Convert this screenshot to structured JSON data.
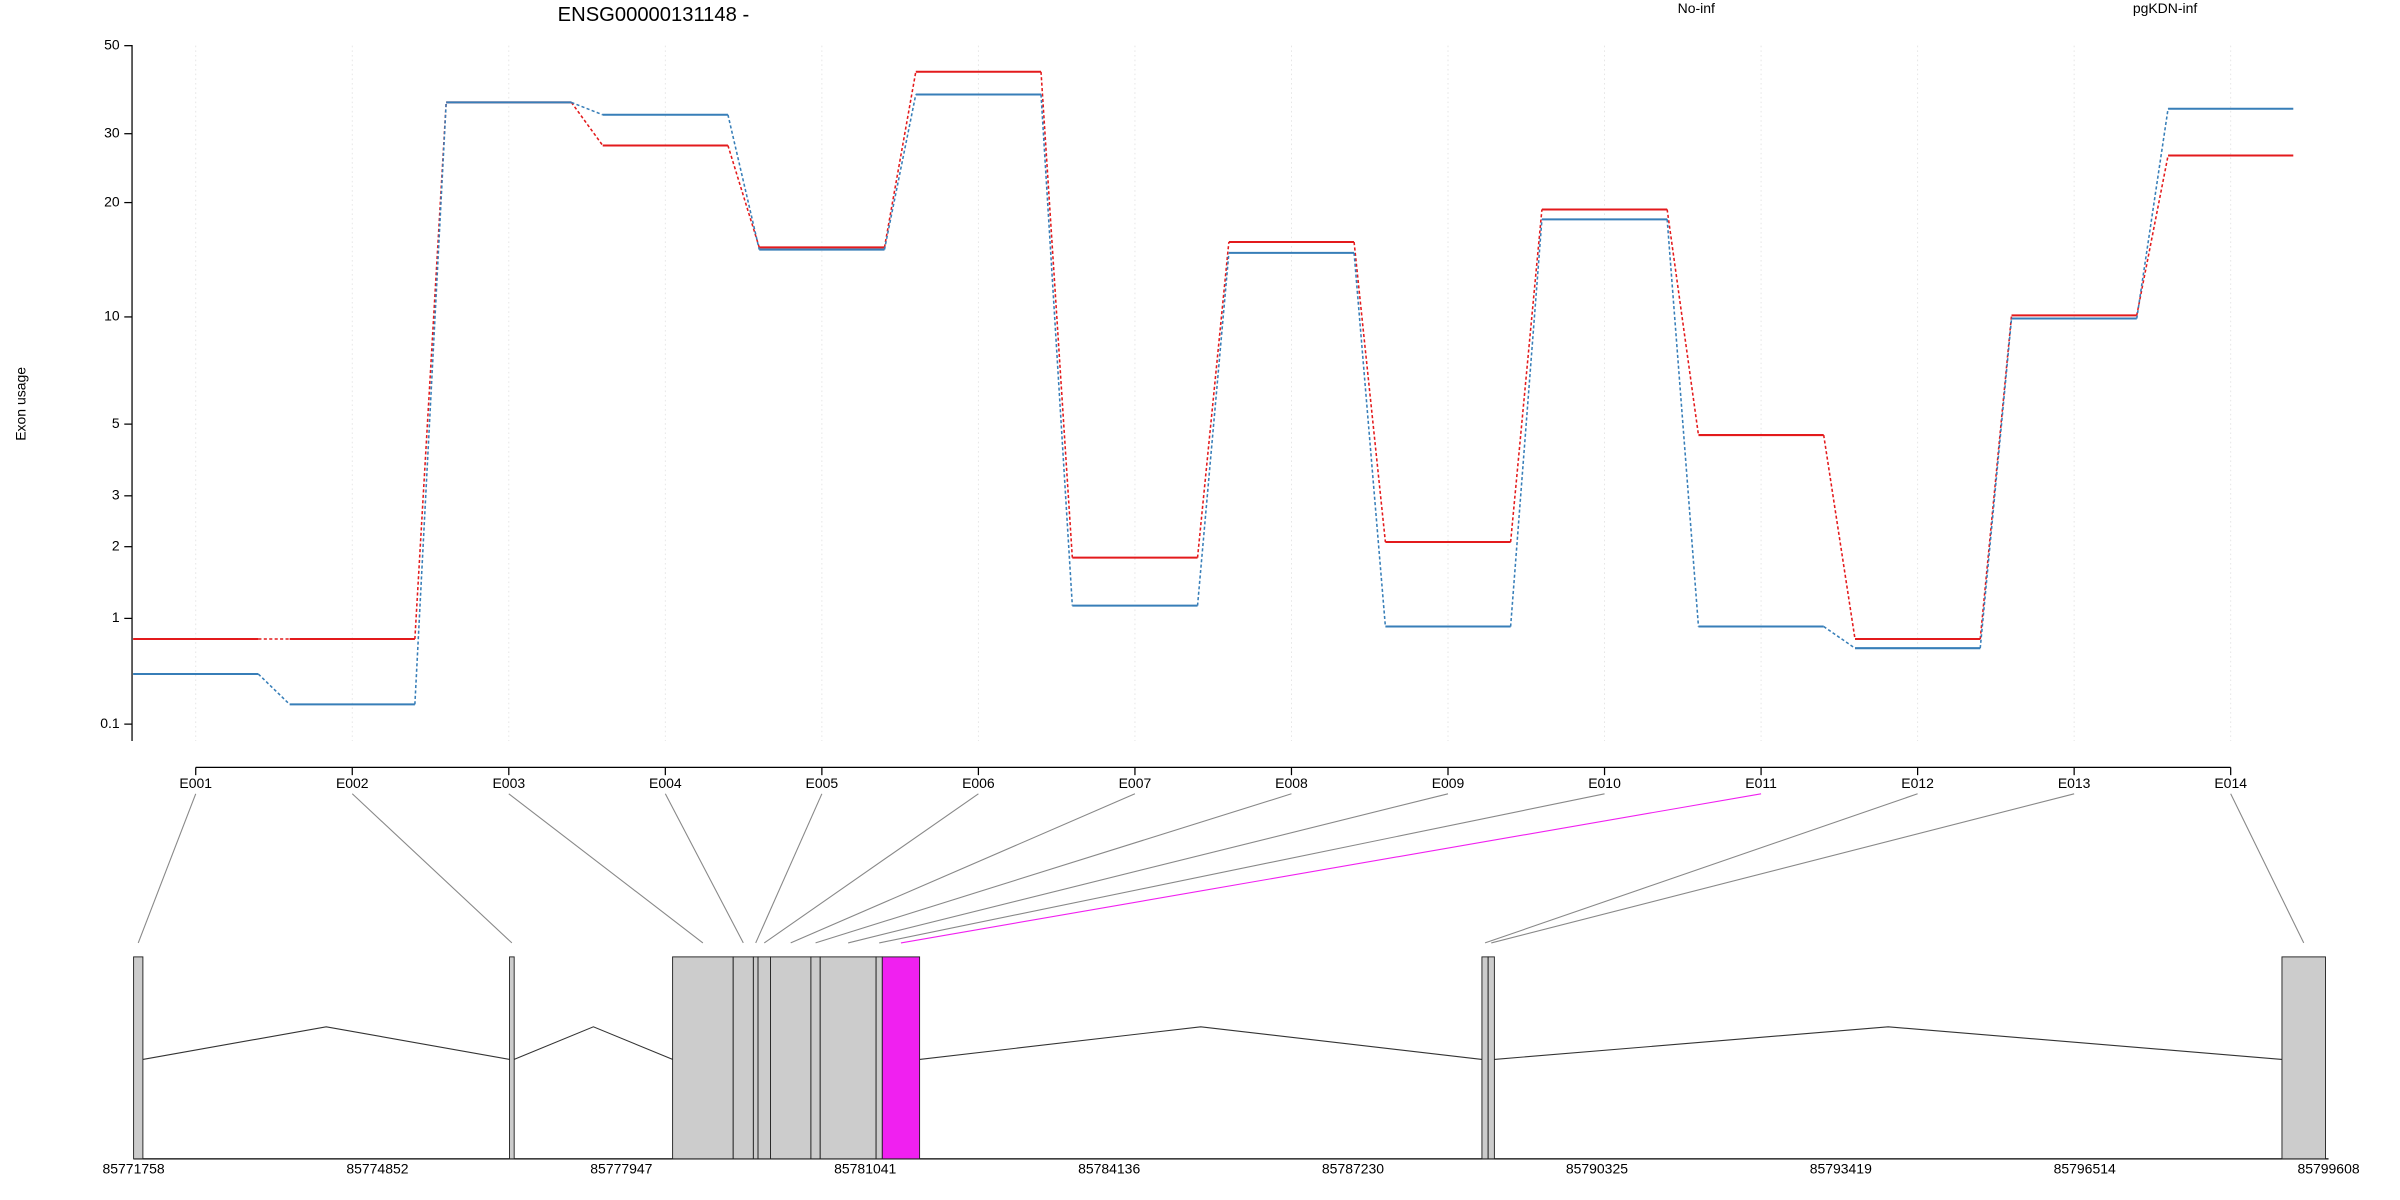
{
  "chart_data": {
    "type": "line",
    "title": "ENSG00000131148 -",
    "y_label": "Exon usage",
    "yscale": "log1p",
    "ylim": [
      0,
      50
    ],
    "yticks": [
      0.1,
      1,
      2,
      3,
      5,
      10,
      20,
      30,
      50
    ],
    "grid": true,
    "legend": "top",
    "categories": [
      "E001",
      "E002",
      "E003",
      "E004",
      "E005",
      "E006",
      "E007",
      "E008",
      "E009",
      "E010",
      "E011",
      "E012",
      "E013",
      "E014"
    ],
    "series": [
      {
        "name": "No-inf",
        "color": "#e31a1c",
        "values": [
          0.78,
          0.78,
          36,
          28,
          15.3,
          43,
          1.82,
          15.8,
          2.08,
          19.2,
          4.64,
          0.78,
          10.1,
          26.4
        ]
      },
      {
        "name": "pgKDN-inf",
        "color": "#377eb8",
        "values": [
          0.46,
          0.23,
          36,
          33.5,
          15.1,
          37.7,
          1.15,
          14.8,
          0.91,
          18.1,
          0.91,
          0.69,
          9.9,
          34.7
        ]
      }
    ],
    "gene_model": {
      "xlim": [
        85771758,
        85799608
      ],
      "xticks": [
        85771758,
        85774852,
        85777947,
        85781041,
        85784136,
        85787230,
        85790325,
        85793419,
        85796514,
        85799608
      ],
      "exons": [
        {
          "start": 85771758,
          "end": 85771876,
          "color": "#cccccc"
        },
        {
          "start": 85776528,
          "end": 85776587,
          "color": "#cccccc"
        },
        {
          "start": 85778597,
          "end": 85779366,
          "color": "#cccccc"
        },
        {
          "start": 85779366,
          "end": 85779622,
          "color": "#cccccc"
        },
        {
          "start": 85779622,
          "end": 85779681,
          "color": "#cccccc"
        },
        {
          "start": 85779681,
          "end": 85779839,
          "color": "#cccccc"
        },
        {
          "start": 85779839,
          "end": 85780352,
          "color": "#cccccc"
        },
        {
          "start": 85780352,
          "end": 85780470,
          "color": "#cccccc"
        },
        {
          "start": 85780470,
          "end": 85781179,
          "color": "#cccccc"
        },
        {
          "start": 85781179,
          "end": 85781258,
          "color": "#cccccc"
        },
        {
          "start": 85781258,
          "end": 85781731,
          "color": "#f020f0"
        },
        {
          "start": 85788866,
          "end": 85788945,
          "color": "#cccccc"
        },
        {
          "start": 85788945,
          "end": 85789024,
          "color": "#cccccc"
        },
        {
          "start": 85799017,
          "end": 85799569,
          "color": "#cccccc"
        }
      ]
    }
  }
}
